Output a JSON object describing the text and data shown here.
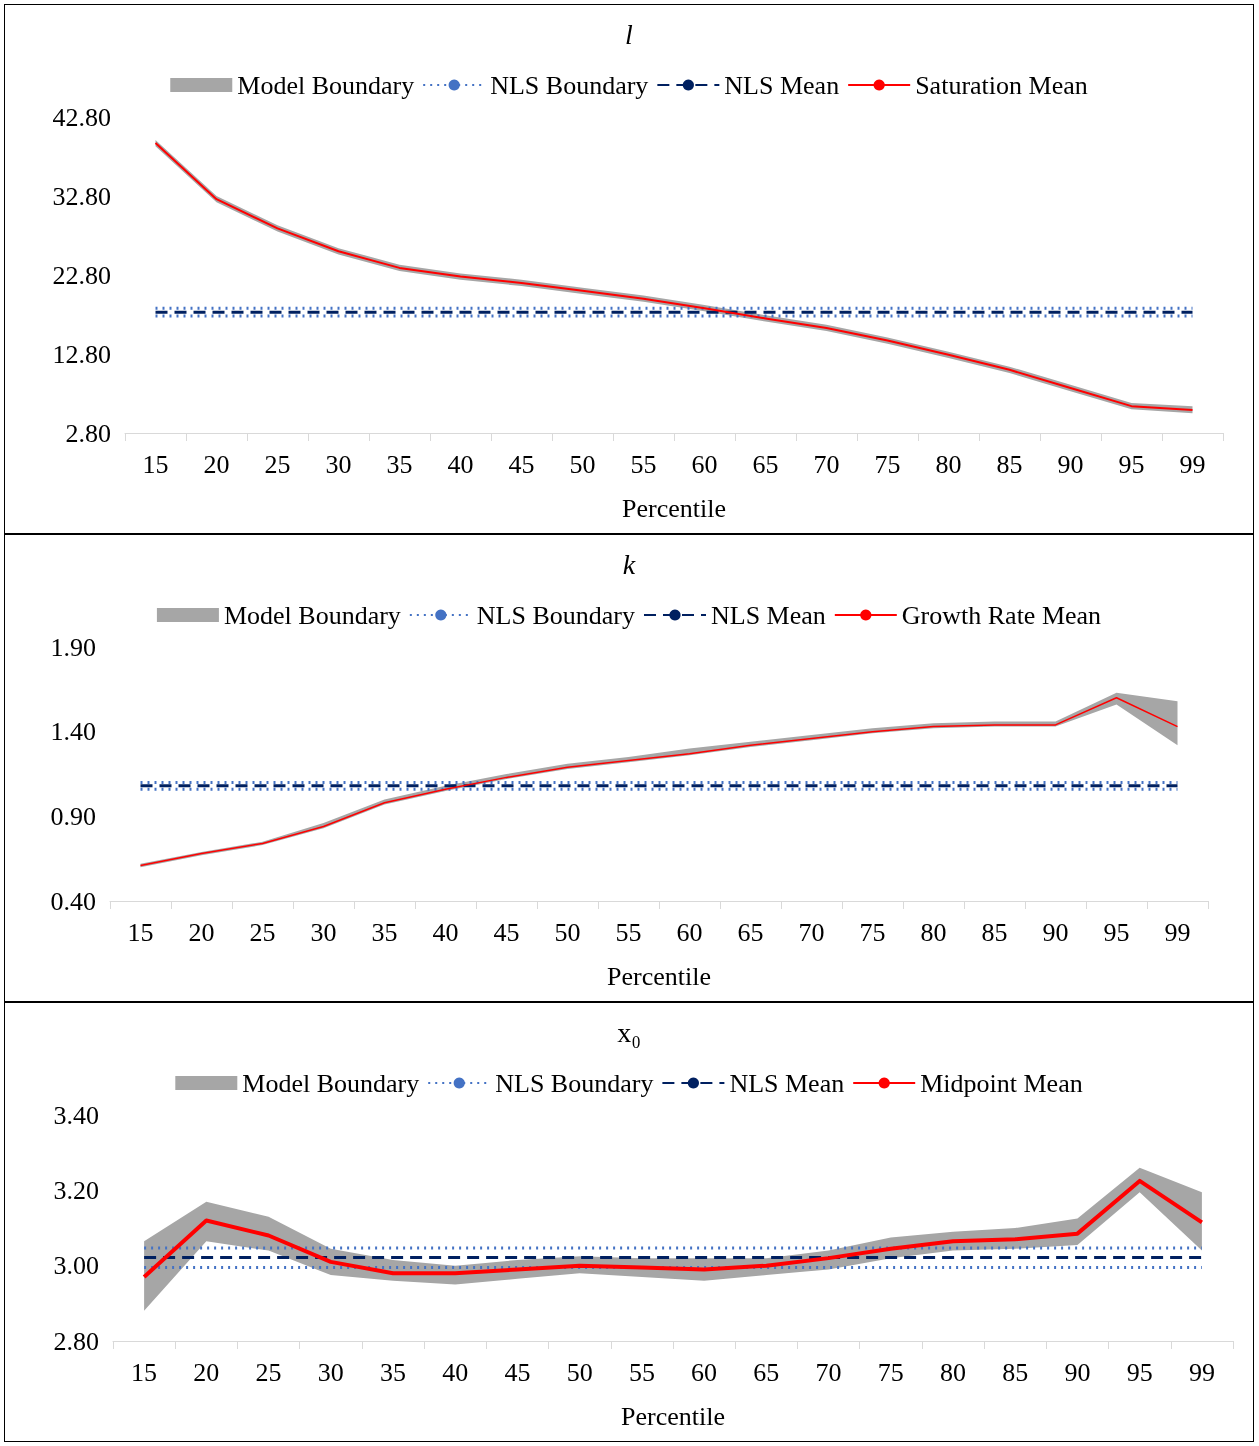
{
  "chart_data": [
    {
      "type": "line",
      "title": "l",
      "xlabel": "Percentile",
      "legend": "top",
      "marker": "none",
      "categories": [
        "15",
        "20",
        "25",
        "30",
        "35",
        "40",
        "45",
        "50",
        "55",
        "60",
        "65",
        "70",
        "75",
        "80",
        "85",
        "90",
        "95",
        "99"
      ],
      "ylim": [
        2.8,
        42.8
      ],
      "yticks": [
        {
          "value": 2.8,
          "label": "2.80"
        },
        {
          "value": 12.8,
          "label": "12.80"
        },
        {
          "value": 22.8,
          "label": "22.80"
        },
        {
          "value": 32.8,
          "label": "32.80"
        },
        {
          "value": 42.8,
          "label": "42.80"
        }
      ],
      "series": [
        {
          "name": "Model Boundary",
          "type": "area",
          "color": "#a6a6a6",
          "values": [
            null,
            null,
            null,
            null,
            null,
            null,
            null,
            null,
            null,
            null,
            null,
            null,
            null,
            null,
            null,
            null,
            null,
            null
          ]
        },
        {
          "name": "NLS Boundary",
          "line_style": "dotted",
          "color": "#4472c4",
          "values": [
            17.6,
            17.6,
            17.6,
            17.6,
            17.6,
            17.6,
            17.6,
            17.6,
            17.6,
            17.6,
            17.6,
            17.6,
            17.6,
            17.6,
            17.6,
            17.6,
            17.6,
            17.6
          ]
        },
        {
          "line_style": "dotted",
          "color": "#4472c4",
          "values": [
            18.6,
            18.6,
            18.6,
            18.6,
            18.6,
            18.6,
            18.6,
            18.6,
            18.6,
            18.6,
            18.6,
            18.6,
            18.6,
            18.6,
            18.6,
            18.6,
            18.6,
            18.6
          ]
        },
        {
          "name": "NLS Mean",
          "line_style": "dashed",
          "color": "#002060",
          "values": [
            18.1,
            18.1,
            18.1,
            18.1,
            18.1,
            18.1,
            18.1,
            18.1,
            18.1,
            18.1,
            18.1,
            18.1,
            18.1,
            18.1,
            18.1,
            18.1,
            18.1,
            18.1
          ]
        },
        {
          "name": "Saturation Mean",
          "line_style": "solid",
          "color": "#ff0000",
          "values": [
            39.5,
            32.4,
            28.7,
            25.8,
            23.7,
            22.6,
            21.8,
            20.8,
            19.8,
            18.6,
            17.3,
            16.1,
            14.5,
            12.7,
            10.8,
            8.5,
            6.2,
            5.7
          ],
          "lower": [
            39.1,
            32.0,
            28.3,
            25.4,
            23.3,
            22.2,
            21.4,
            20.4,
            19.4,
            18.2,
            16.9,
            15.7,
            14.1,
            12.3,
            10.4,
            8.1,
            5.8,
            5.3
          ],
          "upper": [
            39.9,
            32.8,
            29.1,
            26.2,
            24.1,
            23.0,
            22.2,
            21.2,
            20.2,
            19.0,
            17.7,
            16.5,
            14.9,
            13.1,
            11.2,
            8.9,
            6.6,
            6.2
          ]
        }
      ]
    },
    {
      "type": "line",
      "title": "k",
      "xlabel": "Percentile",
      "legend": "top",
      "marker": "none",
      "categories": [
        "15",
        "20",
        "25",
        "30",
        "35",
        "40",
        "45",
        "50",
        "55",
        "60",
        "65",
        "70",
        "75",
        "80",
        "85",
        "90",
        "95",
        "99"
      ],
      "ylim": [
        0.4,
        1.9
      ],
      "yticks": [
        {
          "value": 0.4,
          "label": "0.40"
        },
        {
          "value": 0.9,
          "label": "0.90"
        },
        {
          "value": 1.4,
          "label": "1.40"
        },
        {
          "value": 1.9,
          "label": "1.90"
        }
      ],
      "series": [
        {
          "name": "Model Boundary",
          "type": "area",
          "color": "#a6a6a6",
          "values": [
            null,
            null,
            null,
            null,
            null,
            null,
            null,
            null,
            null,
            null,
            null,
            null,
            null,
            null,
            null,
            null,
            null,
            null
          ]
        },
        {
          "name": "NLS Boundary",
          "line_style": "dotted",
          "color": "#4472c4",
          "values": [
            1.06,
            1.06,
            1.06,
            1.06,
            1.06,
            1.06,
            1.06,
            1.06,
            1.06,
            1.06,
            1.06,
            1.06,
            1.06,
            1.06,
            1.06,
            1.06,
            1.06,
            1.06
          ]
        },
        {
          "line_style": "dotted",
          "color": "#4472c4",
          "values": [
            1.1,
            1.1,
            1.1,
            1.1,
            1.1,
            1.1,
            1.1,
            1.1,
            1.1,
            1.1,
            1.1,
            1.1,
            1.1,
            1.1,
            1.1,
            1.1,
            1.1,
            1.1
          ]
        },
        {
          "name": "NLS Mean",
          "line_style": "dashed",
          "color": "#002060",
          "values": [
            1.08,
            1.08,
            1.08,
            1.08,
            1.08,
            1.08,
            1.08,
            1.08,
            1.08,
            1.08,
            1.08,
            1.08,
            1.08,
            1.08,
            1.08,
            1.08,
            1.08,
            1.08
          ]
        },
        {
          "name": "Growth Rate Mean",
          "line_style": "solid",
          "color": "#ff0000",
          "values": [
            0.61,
            0.68,
            0.74,
            0.84,
            0.98,
            1.06,
            1.13,
            1.19,
            1.23,
            1.27,
            1.32,
            1.36,
            1.4,
            1.43,
            1.44,
            1.44,
            1.6,
            1.43
          ],
          "lower": [
            0.6,
            0.67,
            0.73,
            0.83,
            0.97,
            1.05,
            1.12,
            1.18,
            1.22,
            1.26,
            1.31,
            1.35,
            1.39,
            1.42,
            1.43,
            1.43,
            1.56,
            1.32
          ],
          "upper": [
            0.62,
            0.69,
            0.75,
            0.86,
            1.0,
            1.08,
            1.15,
            1.21,
            1.25,
            1.3,
            1.34,
            1.38,
            1.42,
            1.45,
            1.46,
            1.46,
            1.63,
            1.58
          ]
        }
      ]
    },
    {
      "type": "line",
      "title": "x₀",
      "xlabel": "Percentile",
      "legend": "top",
      "marker": "none",
      "categories": [
        "15",
        "20",
        "25",
        "30",
        "35",
        "40",
        "45",
        "50",
        "55",
        "60",
        "65",
        "70",
        "75",
        "80",
        "85",
        "90",
        "95",
        "99"
      ],
      "ylim": [
        2.8,
        3.4
      ],
      "yticks": [
        {
          "value": 2.8,
          "label": "2.80"
        },
        {
          "value": 3.0,
          "label": "3.00"
        },
        {
          "value": 3.2,
          "label": "3.20"
        },
        {
          "value": 3.4,
          "label": "3.40"
        }
      ],
      "series": [
        {
          "name": "Model Boundary",
          "type": "area",
          "color": "#a6a6a6",
          "values": [
            null,
            null,
            null,
            null,
            null,
            null,
            null,
            null,
            null,
            null,
            null,
            null,
            null,
            null,
            null,
            null,
            null,
            null
          ]
        },
        {
          "name": "NLS Boundary",
          "line_style": "dotted",
          "color": "#4472c4",
          "values": [
            2.995,
            2.995,
            2.995,
            2.995,
            2.995,
            2.995,
            2.995,
            2.995,
            2.995,
            2.995,
            2.995,
            2.995,
            2.995,
            2.995,
            2.995,
            2.995,
            2.995,
            2.995
          ]
        },
        {
          "line_style": "dotted",
          "color": "#4472c4",
          "values": [
            3.047,
            3.047,
            3.047,
            3.047,
            3.047,
            3.047,
            3.047,
            3.047,
            3.047,
            3.047,
            3.047,
            3.047,
            3.047,
            3.047,
            3.047,
            3.047,
            3.047,
            3.047
          ]
        },
        {
          "name": "NLS Mean",
          "line_style": "dashed",
          "color": "#002060",
          "values": [
            3.022,
            3.022,
            3.022,
            3.022,
            3.022,
            3.022,
            3.022,
            3.022,
            3.022,
            3.022,
            3.022,
            3.022,
            3.022,
            3.022,
            3.022,
            3.022,
            3.022,
            3.022
          ]
        },
        {
          "name": "Midpoint Mean",
          "line_style": "solid",
          "color": "#ff0000",
          "values": [
            2.97,
            3.12,
            3.08,
            3.01,
            2.98,
            2.98,
            2.99,
            3.0,
            2.995,
            2.99,
            3.0,
            3.02,
            3.045,
            3.065,
            3.07,
            3.085,
            3.225,
            3.115
          ],
          "lower": [
            2.88,
            3.065,
            3.04,
            2.975,
            2.96,
            2.95,
            2.965,
            2.98,
            2.97,
            2.96,
            2.975,
            2.99,
            3.02,
            3.04,
            3.045,
            3.055,
            3.195,
            3.04
          ],
          "upper": [
            3.065,
            3.17,
            3.13,
            3.045,
            3.015,
            3.0,
            3.015,
            3.025,
            3.02,
            3.02,
            3.02,
            3.04,
            3.075,
            3.09,
            3.1,
            3.125,
            3.26,
            3.195
          ]
        }
      ]
    }
  ]
}
